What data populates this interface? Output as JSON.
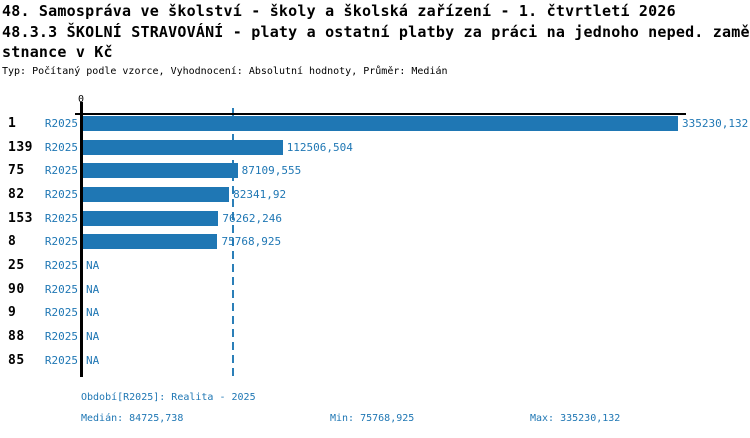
{
  "header": {
    "line1": "48. Samospráva ve školství - školy a školská zařízení - 1. čtvrtletí 2026",
    "line2": "48.3.3 ŠKOLNÍ STRAVOVÁNÍ - platy a ostatní platby za práci na jednoho neped. zamě",
    "line3": "stnance v Kč",
    "meta": "Typ: Počítaný podle vzorce, Vyhodnocení: Absolutní hodnoty, Průměr: Medián"
  },
  "chart_data": {
    "type": "bar",
    "orientation": "horizontal",
    "series_label": "R2025",
    "categories": [
      "1",
      "139",
      "75",
      "82",
      "153",
      "8",
      "25",
      "90",
      "9",
      "88",
      "85"
    ],
    "values": [
      335230.132,
      112506.504,
      87109.555,
      82341.92,
      76262.246,
      75768.925,
      null,
      null,
      null,
      null,
      null
    ],
    "value_labels": [
      "335230,132",
      "112506,504",
      "87109,555",
      "82341,92",
      "76262,246",
      "75768,925",
      "NA",
      "NA",
      "NA",
      "NA",
      "NA"
    ],
    "axis": {
      "origin_label": "0",
      "xlim": [
        0,
        335230.132
      ],
      "median_value": 84725.738,
      "median_line": true,
      "grid": false
    },
    "legend_position": "none",
    "colors": {
      "bar": "#1f77b4",
      "median_line": "#2b7fb8",
      "axis": "#000000",
      "label_text": "#1f77b4"
    }
  },
  "footer": {
    "period": "Období[R2025]: Realita - 2025",
    "median": "Medián: 84725,738",
    "min": "Min: 75768,925",
    "max": "Max: 335230,132"
  }
}
